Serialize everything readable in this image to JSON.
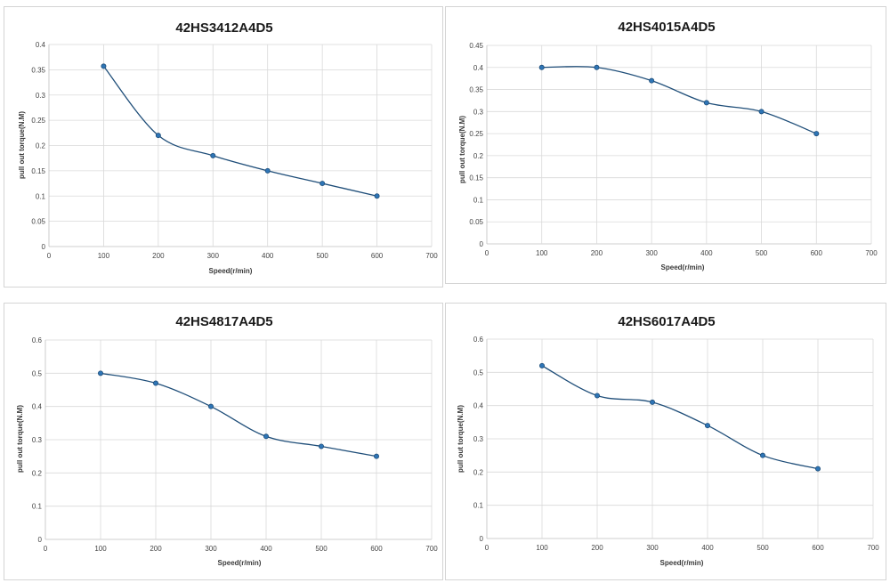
{
  "colors": {
    "line": "#1f4e79",
    "marker": "#2e75b6",
    "grid": "#d9d9d9",
    "axis": "#bfbfbf"
  },
  "chart_data": [
    {
      "type": "line",
      "title": "42HS3412A4D5",
      "xlabel": "Speed(r/min)",
      "ylabel": "pull out torque(N.M)",
      "xlim": [
        0,
        700
      ],
      "ylim": [
        0,
        0.4
      ],
      "xticks": [
        "0",
        "100",
        "200",
        "300",
        "400",
        "500",
        "600",
        "700"
      ],
      "yticks": [
        "0",
        "0.05",
        "0.1",
        "0.15",
        "0.2",
        "0.25",
        "0.3",
        "0.35",
        "0.4"
      ],
      "grid": true,
      "x": [
        100,
        200,
        300,
        400,
        500,
        600
      ],
      "y": [
        0.357,
        0.22,
        0.18,
        0.15,
        0.125,
        0.1
      ]
    },
    {
      "type": "line",
      "title": "42HS4015A4D5",
      "xlabel": "Speed(r/min)",
      "ylabel": "pull out torque(N.M)",
      "xlim": [
        0,
        700
      ],
      "ylim": [
        0,
        0.45
      ],
      "xticks": [
        "0",
        "100",
        "200",
        "300",
        "400",
        "500",
        "600",
        "700"
      ],
      "yticks": [
        "0",
        "0.05",
        "0.1",
        "0.15",
        "0.2",
        "0.25",
        "0.3",
        "0.35",
        "0.4",
        "0.45"
      ],
      "grid": true,
      "x": [
        100,
        200,
        300,
        400,
        500,
        600
      ],
      "y": [
        0.4,
        0.4,
        0.37,
        0.32,
        0.3,
        0.25
      ]
    },
    {
      "type": "line",
      "title": "42HS4817A4D5",
      "xlabel": "Speed(r/min)",
      "ylabel": "pull out torque(N.M)",
      "xlim": [
        0,
        700
      ],
      "ylim": [
        0,
        0.6
      ],
      "xticks": [
        "0",
        "100",
        "200",
        "300",
        "400",
        "500",
        "600",
        "700"
      ],
      "yticks": [
        "0",
        "0.1",
        "0.2",
        "0.3",
        "0.4",
        "0.5",
        "0.6"
      ],
      "grid": true,
      "x": [
        100,
        200,
        300,
        400,
        500,
        600
      ],
      "y": [
        0.5,
        0.47,
        0.4,
        0.31,
        0.28,
        0.25
      ]
    },
    {
      "type": "line",
      "title": "42HS6017A4D5",
      "xlabel": "Speed(r/min)",
      "ylabel": "pull out torque(N.M)",
      "xlim": [
        0,
        700
      ],
      "ylim": [
        0,
        0.6
      ],
      "xticks": [
        "0",
        "100",
        "200",
        "300",
        "400",
        "500",
        "600",
        "700"
      ],
      "yticks": [
        "0",
        "0.1",
        "0.2",
        "0.3",
        "0.4",
        "0.5",
        "0.6"
      ],
      "grid": true,
      "x": [
        100,
        200,
        300,
        400,
        500,
        600
      ],
      "y": [
        0.52,
        0.43,
        0.41,
        0.34,
        0.25,
        0.21
      ]
    }
  ]
}
